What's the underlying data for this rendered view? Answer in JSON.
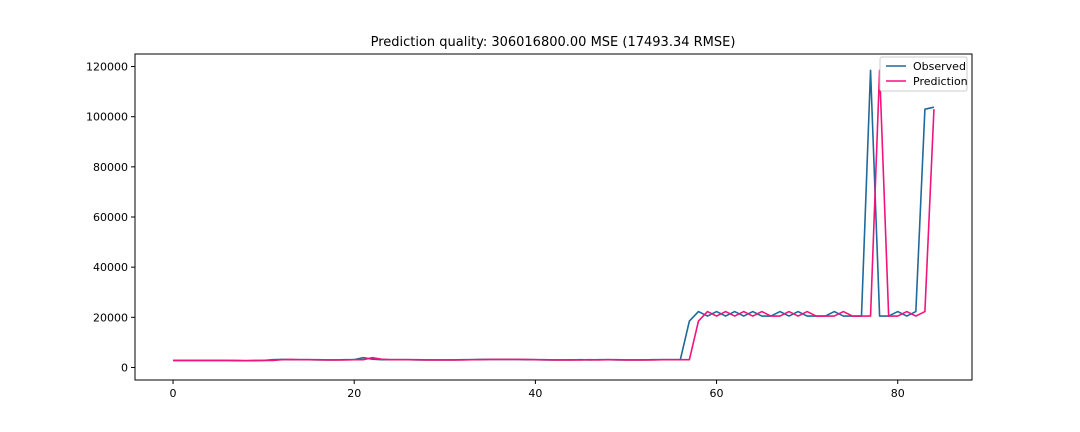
{
  "chart_data": {
    "type": "line",
    "title": "Prediction quality: 306016800.00 MSE (17493.34 RMSE)",
    "xlabel": "",
    "ylabel": "",
    "xlim": [
      -4.2,
      88.2
    ],
    "ylim": [
      -5000,
      125000
    ],
    "xticks": [
      0,
      20,
      40,
      60,
      80
    ],
    "xtick_labels": [
      "0",
      "20",
      "40",
      "60",
      "80"
    ],
    "yticks": [
      0,
      20000,
      40000,
      60000,
      80000,
      100000,
      120000
    ],
    "ytick_labels": [
      "0",
      "20000",
      "40000",
      "60000",
      "80000",
      "100000",
      "120000"
    ],
    "grid": false,
    "legend_position": "top-right",
    "series": [
      {
        "name": "Observed",
        "color": "#1f6a9a",
        "x": [
          0,
          1,
          2,
          3,
          4,
          5,
          6,
          7,
          8,
          9,
          10,
          11,
          12,
          13,
          14,
          15,
          16,
          17,
          18,
          19,
          20,
          21,
          22,
          23,
          24,
          25,
          26,
          27,
          28,
          29,
          30,
          31,
          32,
          33,
          34,
          35,
          36,
          37,
          38,
          39,
          40,
          41,
          42,
          43,
          44,
          45,
          46,
          47,
          48,
          49,
          50,
          51,
          52,
          53,
          54,
          55,
          56,
          57,
          58,
          59,
          60,
          61,
          62,
          63,
          64,
          65,
          66,
          67,
          68,
          69,
          70,
          71,
          72,
          73,
          74,
          75,
          76,
          77,
          78,
          79,
          80,
          81,
          82,
          83,
          84
        ],
        "values": [
          2800,
          2800,
          2800,
          2800,
          2800,
          2800,
          2800,
          2700,
          2700,
          2800,
          2800,
          3100,
          3200,
          3100,
          3100,
          3100,
          3000,
          3000,
          3000,
          3100,
          3100,
          3900,
          3300,
          3100,
          3100,
          3100,
          3100,
          3000,
          3000,
          3000,
          3000,
          3000,
          3100,
          3100,
          3200,
          3200,
          3200,
          3200,
          3200,
          3100,
          3100,
          3000,
          3000,
          3000,
          3000,
          3100,
          3000,
          3100,
          3100,
          3000,
          3000,
          3000,
          3000,
          3100,
          3100,
          3100,
          3100,
          18500,
          22300,
          20500,
          22300,
          20500,
          22300,
          20500,
          22300,
          20500,
          20500,
          22300,
          20500,
          22300,
          20500,
          20500,
          20500,
          22300,
          20500,
          20500,
          20500,
          118500,
          20500,
          20500,
          22300,
          20500,
          22300,
          103000,
          103800
        ]
      },
      {
        "name": "Prediction",
        "color": "#f0147c",
        "x": [
          0,
          1,
          2,
          3,
          4,
          5,
          6,
          7,
          8,
          9,
          10,
          11,
          12,
          13,
          14,
          15,
          16,
          17,
          18,
          19,
          20,
          21,
          22,
          23,
          24,
          25,
          26,
          27,
          28,
          29,
          30,
          31,
          32,
          33,
          34,
          35,
          36,
          37,
          38,
          39,
          40,
          41,
          42,
          43,
          44,
          45,
          46,
          47,
          48,
          49,
          50,
          51,
          52,
          53,
          54,
          55,
          56,
          57,
          58,
          59,
          60,
          61,
          62,
          63,
          64,
          65,
          66,
          67,
          68,
          69,
          70,
          71,
          72,
          73,
          74,
          75,
          76,
          77,
          78,
          79,
          80,
          81,
          82,
          83,
          84
        ],
        "values": [
          2800,
          2800,
          2800,
          2800,
          2800,
          2800,
          2800,
          2800,
          2700,
          2700,
          2800,
          2800,
          3100,
          3200,
          3100,
          3100,
          3100,
          3000,
          3000,
          3000,
          3100,
          3100,
          3900,
          3300,
          3100,
          3100,
          3100,
          3100,
          3000,
          3000,
          3000,
          3000,
          3000,
          3100,
          3100,
          3200,
          3200,
          3200,
          3200,
          3200,
          3100,
          3100,
          3000,
          3000,
          3000,
          3000,
          3100,
          3000,
          3100,
          3100,
          3000,
          3000,
          3000,
          3000,
          3100,
          3100,
          3100,
          3100,
          18500,
          22300,
          20500,
          22300,
          20500,
          22300,
          20500,
          22300,
          20500,
          20500,
          22300,
          20500,
          22300,
          20500,
          20500,
          20500,
          22300,
          20500,
          20500,
          20500,
          118500,
          20500,
          20500,
          22300,
          20500,
          22300,
          103000
        ]
      }
    ]
  }
}
